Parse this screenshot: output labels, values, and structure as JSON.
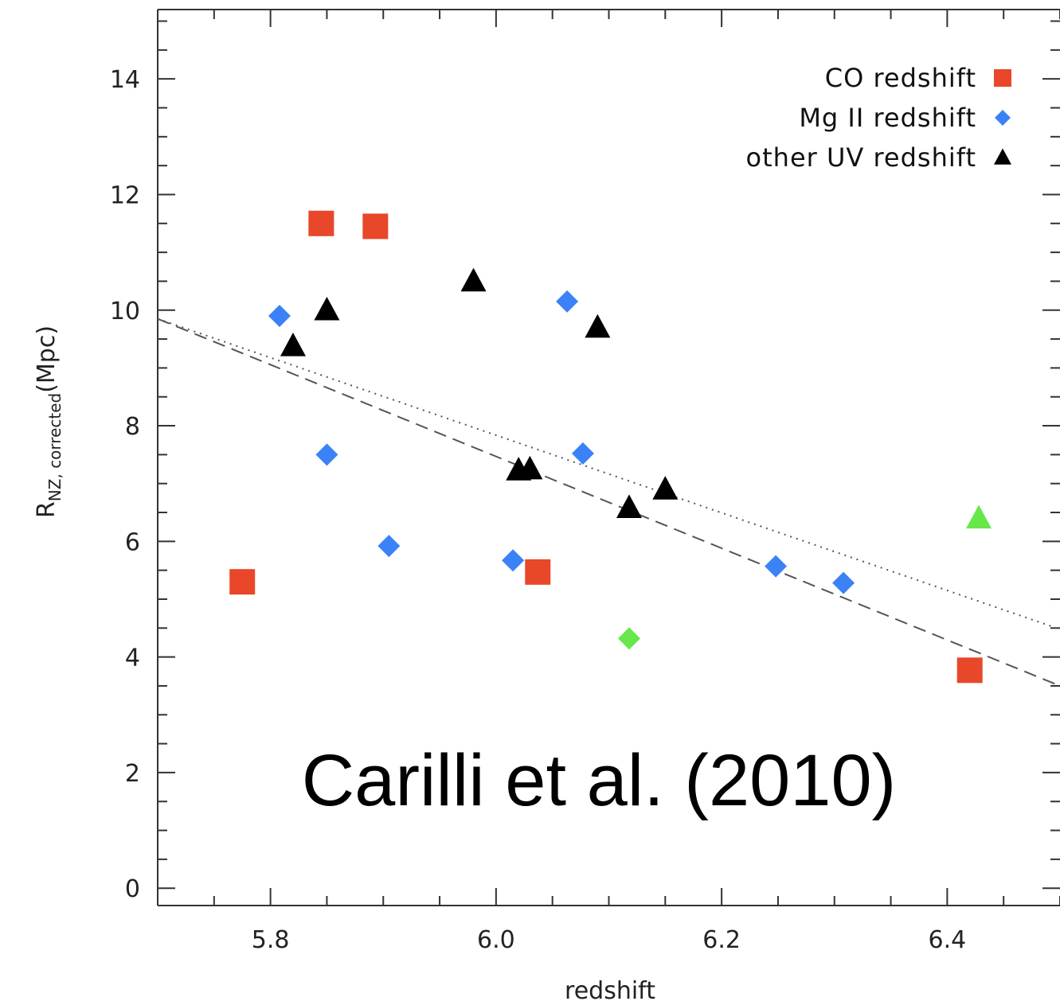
{
  "chart_data": {
    "type": "scatter",
    "xlabel": "redshift",
    "ylabel": {
      "main": "R",
      "subscript": "NZ, corrected",
      "unit": "(Mpc)"
    },
    "xlim": [
      5.7,
      6.5
    ],
    "ylim": [
      -0.3,
      15.2
    ],
    "x_ticks": [
      {
        "value": 5.8,
        "label": "5.8"
      },
      {
        "value": 6.0,
        "label": "6.0"
      },
      {
        "value": 6.2,
        "label": "6.2"
      },
      {
        "value": 6.4,
        "label": "6.4"
      }
    ],
    "y_ticks": [
      {
        "value": 0,
        "label": "0"
      },
      {
        "value": 2,
        "label": "2"
      },
      {
        "value": 4,
        "label": "4"
      },
      {
        "value": 6,
        "label": "6"
      },
      {
        "value": 8,
        "label": "8"
      },
      {
        "value": 10,
        "label": "10"
      },
      {
        "value": 12,
        "label": "12"
      },
      {
        "value": 14,
        "label": "14"
      }
    ],
    "x_minor_step": 0.05,
    "y_minor_step": 0.5,
    "grid": false,
    "legend_position": "top-right",
    "annotation": "Carilli et al. (2010)",
    "series": [
      {
        "name": "CO redshift",
        "marker": "square",
        "color": "#e8472a",
        "points": [
          {
            "x": 5.845,
            "y": 11.5
          },
          {
            "x": 5.893,
            "y": 11.45
          },
          {
            "x": 5.775,
            "y": 5.3
          },
          {
            "x": 6.037,
            "y": 5.47
          },
          {
            "x": 6.42,
            "y": 3.77
          }
        ]
      },
      {
        "name": "Mg II redshift",
        "marker": "diamond",
        "color": "#3b82f6",
        "points": [
          {
            "x": 5.808,
            "y": 9.9
          },
          {
            "x": 5.85,
            "y": 7.5
          },
          {
            "x": 5.905,
            "y": 5.92
          },
          {
            "x": 6.015,
            "y": 5.67
          },
          {
            "x": 6.063,
            "y": 10.15
          },
          {
            "x": 6.077,
            "y": 7.52
          },
          {
            "x": 6.248,
            "y": 5.57
          },
          {
            "x": 6.308,
            "y": 5.28
          }
        ]
      },
      {
        "name": "other UV redshift",
        "marker": "triangle",
        "color": "#000000",
        "points": [
          {
            "x": 5.82,
            "y": 9.38
          },
          {
            "x": 5.85,
            "y": 10.0
          },
          {
            "x": 5.98,
            "y": 10.5
          },
          {
            "x": 6.02,
            "y": 7.23
          },
          {
            "x": 6.03,
            "y": 7.25
          },
          {
            "x": 6.09,
            "y": 9.7
          },
          {
            "x": 6.118,
            "y": 6.58
          },
          {
            "x": 6.15,
            "y": 6.9
          }
        ]
      },
      {
        "marker": "diamond",
        "color": "#66e84a",
        "points": [
          {
            "x": 6.118,
            "y": 4.32
          }
        ]
      },
      {
        "marker": "triangle",
        "color": "#66e84a",
        "points": [
          {
            "x": 6.428,
            "y": 6.4
          }
        ]
      }
    ],
    "fit_lines": [
      {
        "style": "dotted",
        "x": [
          5.7,
          6.5
        ],
        "y": [
          9.85,
          4.48
        ]
      },
      {
        "style": "dashed",
        "x": [
          5.7,
          6.5
        ],
        "y": [
          9.85,
          3.5
        ]
      }
    ]
  }
}
